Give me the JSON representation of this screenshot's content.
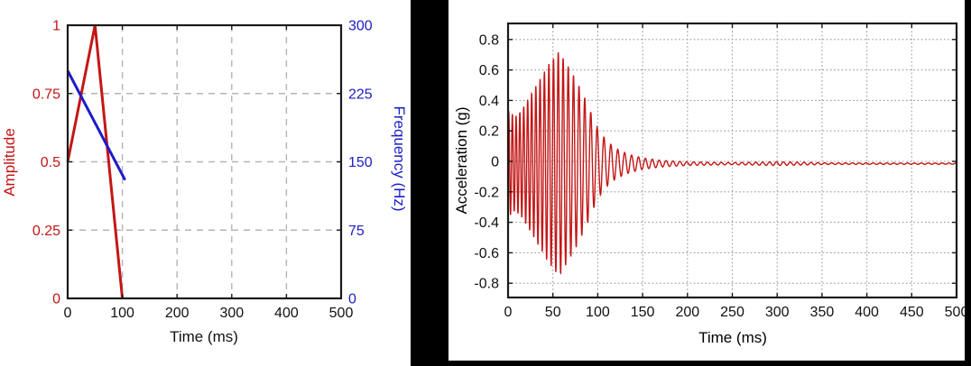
{
  "colors": {
    "series_red": "#c41616",
    "series_blue": "#1c1cc8",
    "spine": "#1a1a1a",
    "tick_text": "#111111",
    "grid_left": "#b4b4b4",
    "grid_right": "#9b9b9b",
    "panel_bg": "#ffffff",
    "decor_black": "#000000"
  },
  "chart_data": [
    {
      "type": "line",
      "title": "",
      "xlabel": "Time (ms)",
      "ylabels": {
        "left": "Amplitude",
        "right": "Frequency (Hz)"
      },
      "xlim": [
        0,
        500
      ],
      "xticks": [
        0,
        100,
        200,
        300,
        400,
        500
      ],
      "xtick_labels": [
        "0",
        "100",
        "200",
        "300",
        "400",
        "500"
      ],
      "left_axis": {
        "ylim": [
          0,
          1
        ],
        "ticks": [
          0,
          0.25,
          0.5,
          0.75,
          1
        ],
        "tick_labels": [
          "0",
          "0.25",
          "0.5",
          "0.75",
          "1"
        ],
        "color": "#c41616"
      },
      "right_axis": {
        "ylim": [
          0,
          300
        ],
        "ticks": [
          0,
          75,
          150,
          225,
          300
        ],
        "tick_labels": [
          "0",
          "75",
          "150",
          "225",
          "300"
        ],
        "color": "#1c1cc8"
      },
      "grid": {
        "style": "dashed",
        "on": true
      },
      "legend": "none",
      "series": [
        {
          "name": "amplitude",
          "axis": "left",
          "color": "#c41616",
          "points": [
            [
              0,
              0.5
            ],
            [
              50,
              1.0
            ],
            [
              100,
              0.0
            ]
          ]
        },
        {
          "name": "frequency",
          "axis": "right",
          "color": "#1c1cc8",
          "points": [
            [
              0,
              250
            ],
            [
              105,
              130
            ]
          ]
        }
      ]
    },
    {
      "type": "line",
      "title": "",
      "xlabel": "Time (ms)",
      "ylabel": "Acceleration (g)",
      "xlim": [
        0,
        500
      ],
      "xticks": [
        0,
        50,
        100,
        150,
        200,
        250,
        300,
        350,
        400,
        450,
        500
      ],
      "xtick_labels": [
        "0",
        "50",
        "100",
        "150",
        "200",
        "250",
        "300",
        "350",
        "400",
        "450",
        "500"
      ],
      "ylim": [
        -0.9,
        0.9
      ],
      "yticks": [
        -0.8,
        -0.6,
        -0.4,
        -0.2,
        0,
        0.2,
        0.4,
        0.6,
        0.8
      ],
      "ytick_labels": [
        "-0.8",
        "-0.6",
        "-0.4",
        "-0.2",
        "0",
        "0.2",
        "0.4",
        "0.6",
        "0.8"
      ],
      "grid": {
        "style": "dotted",
        "on": true
      },
      "legend": "none",
      "series": [
        {
          "name": "acceleration",
          "color": "#c41616",
          "signal": {
            "kind": "decaying_chirp",
            "peak_g": 0.74,
            "peak_time_ms": 57,
            "frequency_hz_points": [
              [
                0,
                250
              ],
              [
                105,
                130
              ],
              [
                500,
                130
              ]
            ],
            "envelope_g_points": [
              [
                0,
                0.35
              ],
              [
                8,
                0.31
              ],
              [
                15,
                0.35
              ],
              [
                25,
                0.45
              ],
              [
                35,
                0.55
              ],
              [
                45,
                0.65
              ],
              [
                57,
                0.74
              ],
              [
                65,
                0.66
              ],
              [
                75,
                0.56
              ],
              [
                85,
                0.44
              ],
              [
                95,
                0.3
              ],
              [
                100,
                0.23
              ],
              [
                110,
                0.15
              ],
              [
                120,
                0.1
              ],
              [
                135,
                0.06
              ],
              [
                150,
                0.038
              ],
              [
                170,
                0.022
              ],
              [
                200,
                0.012
              ],
              [
                250,
                0.007
              ],
              [
                300,
                0.012
              ],
              [
                330,
                0.009
              ],
              [
                360,
                0.005
              ],
              [
                500,
                0.004
              ]
            ],
            "baseline_g": -0.015,
            "sample_step_ms": 0.25
          }
        }
      ]
    }
  ]
}
